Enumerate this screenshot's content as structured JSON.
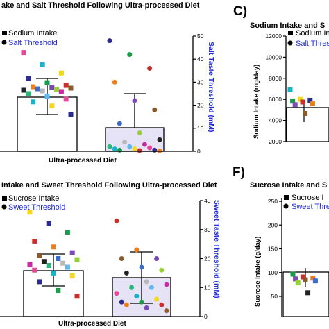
{
  "panels": {
    "b": {
      "title": "ake and  Salt Threshold Following Ultra-processed  Diet",
      "legend": [
        "Sodium Intake",
        "Salt Threshold"
      ],
      "xlabel": "Ultra-processed Diet",
      "right_ylabel": "Salt Taste Threshold (mM)",
      "right_ticks": [
        "50",
        "40",
        "30",
        "20",
        "10",
        "0"
      ]
    },
    "c": {
      "letter": "C)",
      "title": "Sodium Intake and S",
      "legend": [
        "Sodium Intake",
        "Salt Threshol"
      ],
      "ylabel": "Sodium Intake  (mg/day)",
      "yticks": [
        "12000",
        "10000",
        "8000",
        "6000",
        "4000",
        "2000"
      ]
    },
    "e": {
      "title": "Intake and Sweet Threshold Following Ultra-processed Diet",
      "legend": [
        "Sucrose Intake",
        "Sweet Threshold"
      ],
      "xlabel": "Ultra-processed Diet",
      "right_ylabel": "Sweet Taste Threshold (mM)",
      "right_ticks": [
        "40",
        "30",
        "20",
        "10",
        "0"
      ]
    },
    "f": {
      "letter": "F)",
      "title": "Sucrose Intake and S",
      "legend": [
        "Sucrose I",
        "Sweet Threshol"
      ],
      "ylabel": "Sucrose Intake  (g/day)",
      "yticks": [
        "250",
        "200",
        "150",
        "100",
        "50"
      ]
    }
  },
  "colors": {
    "threshold": "#1f2bd6",
    "threshold_bar_fill": "#e6e3f7",
    "marker_palette": [
      "#e8469a",
      "#17b3c9",
      "#f2d81c",
      "#2a2a8f",
      "#1a9a4a",
      "#c9302c",
      "#ee7d1e",
      "#7a4ab5",
      "#8b5a2b",
      "#3d6ec9",
      "#97cf3a",
      "#222222",
      "#b8b8b8",
      "#c52ea0",
      "#2fb579",
      "#5fb8e8"
    ]
  },
  "chart_data": [
    {
      "panel": "B",
      "type": "bar",
      "categories": [
        "Ultra-processed Diet"
      ],
      "series": [
        {
          "name": "Sodium Intake",
          "axis": "left",
          "mean": 4500,
          "sd": 1200,
          "points": [
            7200,
            6300,
            5700,
            5300,
            5000,
            4800,
            4700,
            4650,
            4600,
            4550,
            4500,
            4450,
            4400,
            4350,
            4200,
            4000,
            3800,
            3600,
            3300,
            2700
          ]
        },
        {
          "name": "Salt Threshold",
          "axis": "right",
          "mean": 10,
          "sd": 15,
          "points": [
            48,
            42,
            36,
            30,
            22,
            18,
            12,
            8,
            5,
            4,
            3,
            2,
            2,
            1.5,
            1,
            1,
            0.5,
            0.5,
            0.3,
            0.2
          ]
        }
      ],
      "right_ylim": [
        0,
        50
      ]
    },
    {
      "panel": "C",
      "type": "bar",
      "series": [
        {
          "name": "Sodium Intake",
          "mean": 4500,
          "points": [
            5900,
            4800,
            4700,
            4600,
            4500,
            4300,
            4200,
            3200
          ]
        },
        {
          "name": "Salt Threshold",
          "points": []
        }
      ],
      "ylim": [
        0,
        12000
      ]
    },
    {
      "panel": "E",
      "type": "bar",
      "categories": [
        "Ultra-processed Diet"
      ],
      "series": [
        {
          "name": "Sucrose Intake",
          "axis": "left",
          "mean": 95,
          "sd": 35,
          "points": [
            180,
            160,
            145,
            130,
            120,
            110,
            105,
            100,
            98,
            95,
            92,
            90,
            88,
            85,
            80,
            75,
            70,
            60,
            45,
            35
          ]
        },
        {
          "name": "Sweet Threshold",
          "axis": "right",
          "mean": 12.5,
          "sd": 7,
          "points": [
            33,
            23,
            20,
            20,
            17,
            16,
            15,
            12,
            11,
            10,
            10,
            8,
            7,
            6,
            5,
            5,
            4,
            4,
            3,
            2
          ]
        }
      ],
      "right_ylim": [
        0,
        40
      ]
    },
    {
      "panel": "F",
      "type": "bar",
      "series": [
        {
          "name": "Sucrose I",
          "mean": 95,
          "points": [
            107,
            100,
            97,
            95,
            93,
            90,
            85,
            60
          ]
        },
        {
          "name": "Sweet Threshol",
          "points": []
        }
      ],
      "ylim": [
        0,
        300
      ]
    }
  ]
}
